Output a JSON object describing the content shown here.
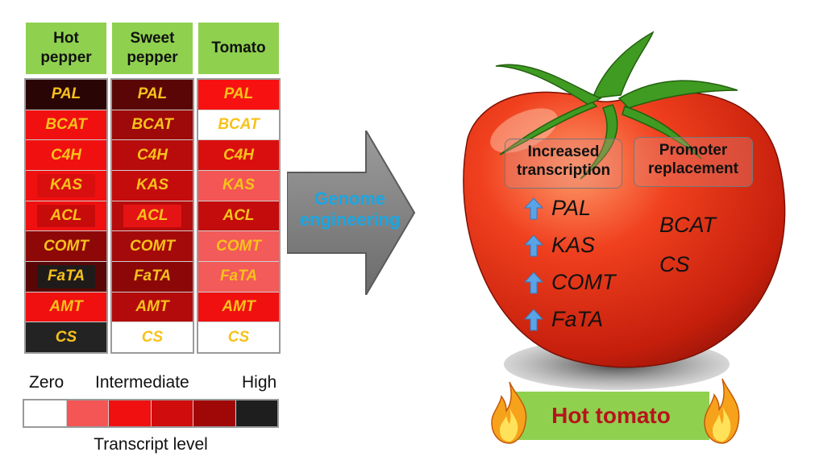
{
  "columns": [
    {
      "header_lines": [
        "Hot",
        "pepper"
      ],
      "cells": [
        {
          "gene": "PAL",
          "color": "#2a0505",
          "inner": null
        },
        {
          "gene": "BCAT",
          "color": "#f01010",
          "inner": null
        },
        {
          "gene": "C4H",
          "color": "#f01010",
          "inner": null
        },
        {
          "gene": "KAS",
          "color": "#f01010",
          "inner": "#d90f0f"
        },
        {
          "gene": "ACL",
          "color": "#f01010",
          "inner": "#c70b0b"
        },
        {
          "gene": "COMT",
          "color": "#8f0808",
          "inner": null
        },
        {
          "gene": "FaTA",
          "color": "#5a0606",
          "inner": "#201b1b"
        },
        {
          "gene": "AMT",
          "color": "#f01010",
          "inner": null
        },
        {
          "gene": "CS",
          "color": "#232323",
          "inner": null
        }
      ]
    },
    {
      "header_lines": [
        "Sweet",
        "pepper"
      ],
      "cells": [
        {
          "gene": "PAL",
          "color": "#5a0606",
          "inner": null
        },
        {
          "gene": "BCAT",
          "color": "#9e0909",
          "inner": null
        },
        {
          "gene": "C4H",
          "color": "#b80b0b",
          "inner": null
        },
        {
          "gene": "KAS",
          "color": "#c40c0c",
          "inner": null
        },
        {
          "gene": "ACL",
          "color": "#b80b0b",
          "inner": "#e41414"
        },
        {
          "gene": "COMT",
          "color": "#a50a0a",
          "inner": null
        },
        {
          "gene": "FaTA",
          "color": "#8c0808",
          "inner": null
        },
        {
          "gene": "AMT",
          "color": "#b30b0b",
          "inner": null
        },
        {
          "gene": "CS",
          "color": "#ffffff",
          "inner": null
        }
      ]
    },
    {
      "header_lines": [
        "Tomato"
      ],
      "cells": [
        {
          "gene": "PAL",
          "color": "#f71111",
          "inner": null
        },
        {
          "gene": "BCAT",
          "color": "#ffffff",
          "inner": null
        },
        {
          "gene": "C4H",
          "color": "#d90f0f",
          "inner": null
        },
        {
          "gene": "KAS",
          "color": "#f45555",
          "inner": null
        },
        {
          "gene": "ACL",
          "color": "#c40c0c",
          "inner": null
        },
        {
          "gene": "COMT",
          "color": "#f35a5a",
          "inner": null
        },
        {
          "gene": "FaTA",
          "color": "#f35a5a",
          "inner": null
        },
        {
          "gene": "AMT",
          "color": "#f01010",
          "inner": null
        },
        {
          "gene": "CS",
          "color": "#ffffff",
          "inner": null
        }
      ]
    }
  ],
  "scale": {
    "labels": {
      "zero": "Zero",
      "intermediate": "Intermediate",
      "high": "High"
    },
    "title": "Transcript level",
    "colors": [
      "#ffffff",
      "#f45555",
      "#f01010",
      "#d00c0c",
      "#a00808",
      "#1e1e1e"
    ]
  },
  "arrow": {
    "line1": "Genome",
    "line2": "engineering",
    "color": "#808080"
  },
  "boxes": {
    "increased": {
      "line1": "Increased",
      "line2": "transcription"
    },
    "promoter": {
      "line1": "Promoter",
      "line2": "replacement"
    }
  },
  "up_genes": [
    "PAL",
    "KAS",
    "COMT",
    "FaTA"
  ],
  "promoter_genes": [
    "BCAT",
    "CS"
  ],
  "banner": {
    "text": "Hot tomato",
    "color": "#b7141c"
  },
  "icons": {
    "up": "up-arrow-icon",
    "flame": "flame-icon"
  }
}
